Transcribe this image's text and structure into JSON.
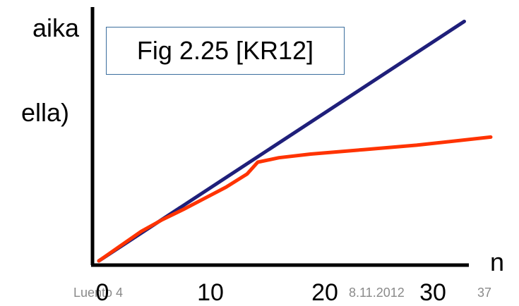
{
  "chart_data": {
    "type": "line",
    "ylabel_lines": [
      "aika",
      "ella)"
    ],
    "xlabel": "n",
    "x_ticks": [
      "0",
      "10",
      "20",
      "30"
    ],
    "xlim": [
      0,
      35
    ],
    "ylim": [
      0,
      33
    ],
    "series": [
      {
        "color": "#1f1f7a",
        "x": [
          0,
          34.5
        ],
        "y": [
          0,
          32.5
        ]
      },
      {
        "color": "#ff3300",
        "x": [
          0,
          2,
          4,
          6,
          8,
          10,
          12,
          14,
          15,
          17,
          20,
          25,
          30,
          37
        ],
        "y": [
          0,
          2.0,
          4.0,
          5.6,
          7.0,
          8.5,
          10.0,
          11.8,
          13.4,
          14.0,
          14.5,
          15.1,
          15.7,
          16.8
        ]
      }
    ],
    "annotation": "Fig 2.25 [KR12]"
  },
  "footer": {
    "left": "Luento 4",
    "date": "8.11.2012",
    "page": "37"
  },
  "colors": {
    "axis": "#000000",
    "box_border": "#3b6e9e",
    "footer_text": "#8a8a8a"
  }
}
